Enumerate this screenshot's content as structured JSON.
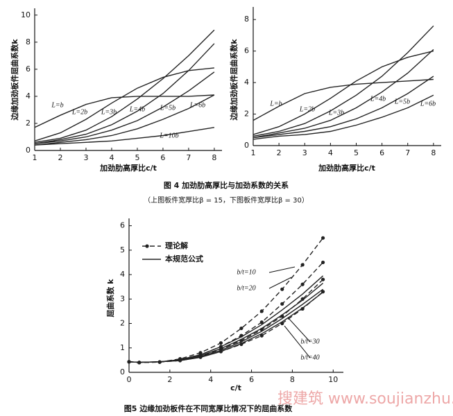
{
  "chart_data": [
    {
      "type": "line",
      "color": "#222",
      "x_label": "加劲肋高厚比c/t",
      "y_label": "边缘加劲板件屈曲系数k",
      "x": [
        1,
        2,
        3,
        4,
        5,
        6,
        7,
        8
      ],
      "xlim": [
        1,
        8.3
      ],
      "xticks": [
        1,
        2,
        3,
        4,
        5,
        6,
        7,
        8
      ],
      "ylim": [
        0,
        10.5
      ],
      "yticks": [
        0,
        2,
        4,
        6,
        8,
        10
      ],
      "series": [
        {
          "name": "L=b",
          "values": [
            1.7,
            2.6,
            3.4,
            3.9,
            4.0,
            4.0,
            4.0,
            4.1
          ]
        },
        {
          "name": "L=2b",
          "values": [
            0.7,
            1.3,
            2.3,
            3.5,
            4.6,
            5.4,
            5.9,
            6.1
          ]
        },
        {
          "name": "L=3b",
          "values": [
            0.6,
            0.9,
            1.5,
            2.5,
            3.8,
            5.3,
            7.0,
            8.9
          ]
        },
        {
          "name": "L=4b",
          "values": [
            0.5,
            0.8,
            1.2,
            1.9,
            2.9,
            4.2,
            5.9,
            7.9
          ]
        },
        {
          "name": "L=5b",
          "values": [
            0.5,
            0.7,
            1.0,
            1.5,
            2.2,
            3.2,
            4.4,
            5.8
          ]
        },
        {
          "name": "L=6b",
          "values": [
            0.4,
            0.6,
            0.8,
            1.1,
            1.6,
            2.3,
            3.1,
            4.1
          ]
        },
        {
          "name": "L=10b",
          "values": [
            0.4,
            0.5,
            0.6,
            0.7,
            0.9,
            1.1,
            1.4,
            1.7
          ]
        }
      ]
    },
    {
      "type": "line",
      "color": "#222",
      "x_label": "加劲肋高厚比c/t",
      "y_label": "边缘加劲板件屈曲系数k",
      "x": [
        1,
        2,
        3,
        4,
        5,
        6,
        7,
        8
      ],
      "xlim": [
        1,
        8.3
      ],
      "xticks": [
        1,
        2,
        3,
        4,
        5,
        6,
        7,
        8
      ],
      "ylim": [
        0,
        8.8
      ],
      "yticks": [
        0,
        2,
        4,
        6,
        8
      ],
      "series": [
        {
          "name": "L=b",
          "values": [
            1.6,
            2.5,
            3.3,
            3.7,
            3.9,
            4.0,
            4.1,
            4.2
          ]
        },
        {
          "name": "L=2b",
          "values": [
            0.7,
            1.2,
            2.0,
            3.0,
            4.1,
            5.0,
            5.6,
            6.0
          ]
        },
        {
          "name": "L=3b",
          "values": [
            0.6,
            0.9,
            1.4,
            2.2,
            3.2,
            4.4,
            5.9,
            7.6
          ]
        },
        {
          "name": "L=4b",
          "values": [
            0.5,
            0.8,
            1.1,
            1.6,
            2.4,
            3.4,
            4.6,
            6.1
          ]
        },
        {
          "name": "L=5b",
          "values": [
            0.5,
            0.7,
            0.9,
            1.2,
            1.7,
            2.4,
            3.3,
            4.4
          ]
        },
        {
          "name": "L=6b",
          "values": [
            0.4,
            0.6,
            0.7,
            0.9,
            1.3,
            1.8,
            2.4,
            3.2
          ]
        }
      ]
    },
    {
      "type": "line-pair",
      "color": "#222",
      "x_label": "c/t",
      "y_label": "屈曲系数 k",
      "legend": [
        "理论解",
        "本规范公式"
      ],
      "x": [
        0,
        0.5,
        1.5,
        2.5,
        3.5,
        4.5,
        5.5,
        6.5,
        7.5,
        8.5,
        9.5
      ],
      "xlim": [
        0,
        10.5
      ],
      "xticks": [
        0,
        2,
        4,
        6,
        8,
        10
      ],
      "ylim": [
        0,
        6.3
      ],
      "yticks": [
        0,
        1,
        2,
        3,
        4,
        5,
        6
      ],
      "series": [
        {
          "name": "b/t=10",
          "values": [
            0.43,
            0.4,
            0.42,
            0.55,
            0.8,
            1.2,
            1.8,
            2.5,
            3.4,
            4.4,
            5.5
          ],
          "formula_values": [
            0.43,
            0.41,
            0.43,
            0.52,
            0.72,
            1.05,
            1.45,
            1.95,
            2.55,
            3.2,
            3.95
          ]
        },
        {
          "name": "b/t=20",
          "values": [
            0.43,
            0.4,
            0.42,
            0.52,
            0.72,
            1.05,
            1.5,
            2.05,
            2.8,
            3.6,
            4.5
          ],
          "formula_values": [
            0.43,
            0.41,
            0.43,
            0.5,
            0.68,
            0.97,
            1.35,
            1.8,
            2.35,
            2.95,
            3.65
          ]
        },
        {
          "name": "b/t=30",
          "values": [
            0.43,
            0.4,
            0.42,
            0.5,
            0.66,
            0.95,
            1.3,
            1.75,
            2.3,
            3.0,
            3.8
          ],
          "formula_values": [
            0.43,
            0.41,
            0.43,
            0.49,
            0.64,
            0.9,
            1.25,
            1.68,
            2.2,
            2.78,
            3.4
          ]
        },
        {
          "name": "b/t=40",
          "values": [
            0.43,
            0.4,
            0.42,
            0.48,
            0.62,
            0.85,
            1.15,
            1.5,
            2.0,
            2.6,
            3.3
          ],
          "formula_values": [
            0.43,
            0.41,
            0.43,
            0.48,
            0.61,
            0.85,
            1.18,
            1.58,
            2.07,
            2.63,
            3.28
          ]
        }
      ]
    }
  ],
  "captions": {
    "figure4": "图 4  加劲肋高厚比与加劲系数的关系",
    "figure4_note": "（上图板件宽厚比β = 15，下图板件宽厚比β = 30）",
    "figure5": "图5 边缘加劲板件在不同宽厚比情况下的屈曲系数"
  },
  "watermark": "搜建筑 www.soujianzhu.cn"
}
